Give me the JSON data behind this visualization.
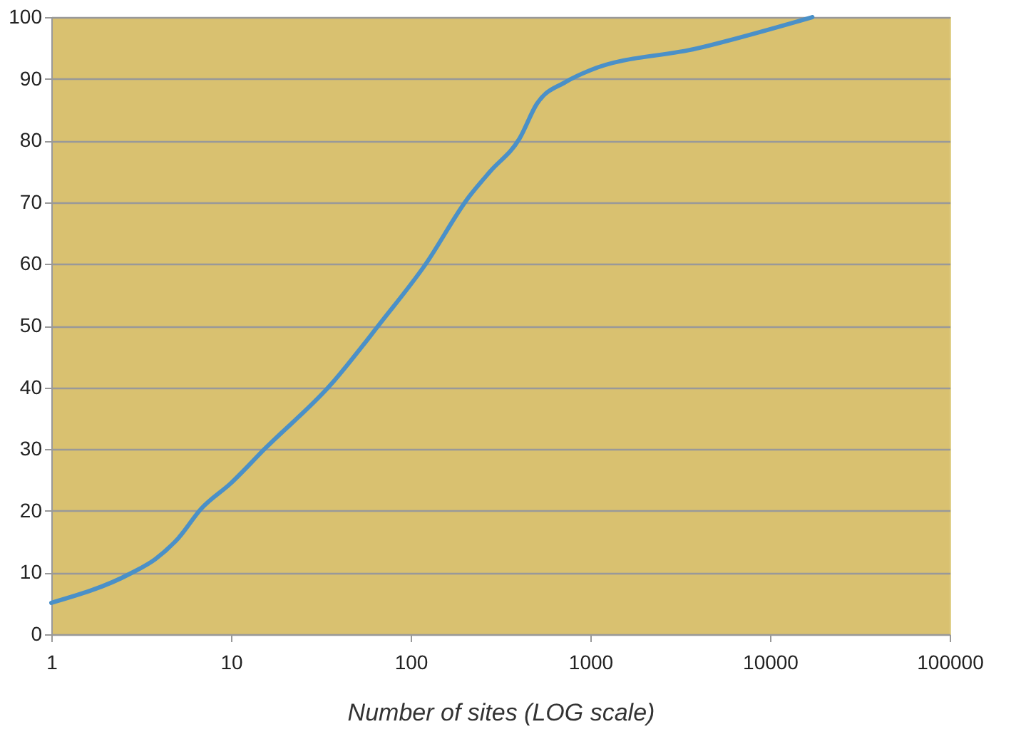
{
  "chart_data": {
    "type": "line",
    "xlabel": "Number of sites (LOG scale)",
    "log": "x",
    "x": [
      1,
      2.78,
      3.8,
      5.1,
      6.8,
      10,
      15.6,
      35.3,
      69,
      120,
      210,
      277,
      403,
      505,
      730,
      1000,
      3890,
      17200
    ],
    "series": [
      {
        "color": "#4a90c8",
        "values": [
          5.1,
          9.9,
          12.2,
          15.6,
          20.3,
          24.5,
          30.2,
          40.2,
          50.7,
          59.8,
          70.8,
          75,
          80.3,
          86,
          89.5,
          91.4,
          94.9,
          100
        ]
      }
    ],
    "xlim": [
      1,
      100000
    ],
    "xticks": [
      1,
      10,
      100,
      1000,
      10000,
      100000
    ],
    "ylim": [
      0,
      100
    ],
    "yticks": [
      0,
      10,
      20,
      30,
      40,
      50,
      60,
      70,
      80,
      90,
      100
    ],
    "grid": "y",
    "marker": "none",
    "line_style": "solid"
  }
}
